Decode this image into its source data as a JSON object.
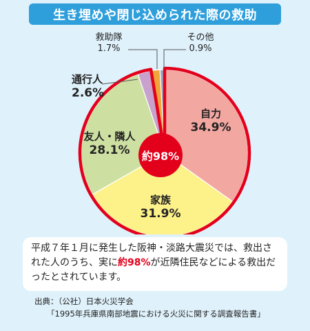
{
  "title": "生き埋めや閉じ込められた際の救助",
  "chart_data": {
    "type": "pie",
    "center_label": "約98%",
    "start_category_clockwise_from_top": "自力",
    "slices": [
      {
        "label": "自力",
        "value": 34.9,
        "value_label": "34.9%",
        "color": "#f2a7a1"
      },
      {
        "label": "家族",
        "value": 31.9,
        "value_label": "31.9%",
        "color": "#fdf28a"
      },
      {
        "label": "友人・隣人",
        "value": 28.1,
        "value_label": "28.1%",
        "color": "#cde0a2"
      },
      {
        "label": "通行人",
        "value": 2.6,
        "value_label": "2.6%",
        "color": "#c8a2cd"
      },
      {
        "label": "救助隊",
        "value": 1.7,
        "value_label": "1.7%",
        "color": "#f0a43a"
      },
      {
        "label": "その他",
        "value": 0.9,
        "value_label": "0.9%",
        "color": "#97a6c8"
      }
    ],
    "highlight_group": [
      "自力",
      "家族",
      "友人・隣人",
      "通行人"
    ],
    "highlight_color": "#e3001b"
  },
  "note": {
    "part1": "平成７年１月に発生した阪神・淡路大震災では、救出された人のうち、実に",
    "highlight": "約98%",
    "part2": "が近隣住民などによる救出だったとされています。"
  },
  "source": {
    "line1": "出典：（公社）日本火災学会",
    "line2": "「1995年兵庫県南部地震における火災に関する調査報告書」"
  }
}
